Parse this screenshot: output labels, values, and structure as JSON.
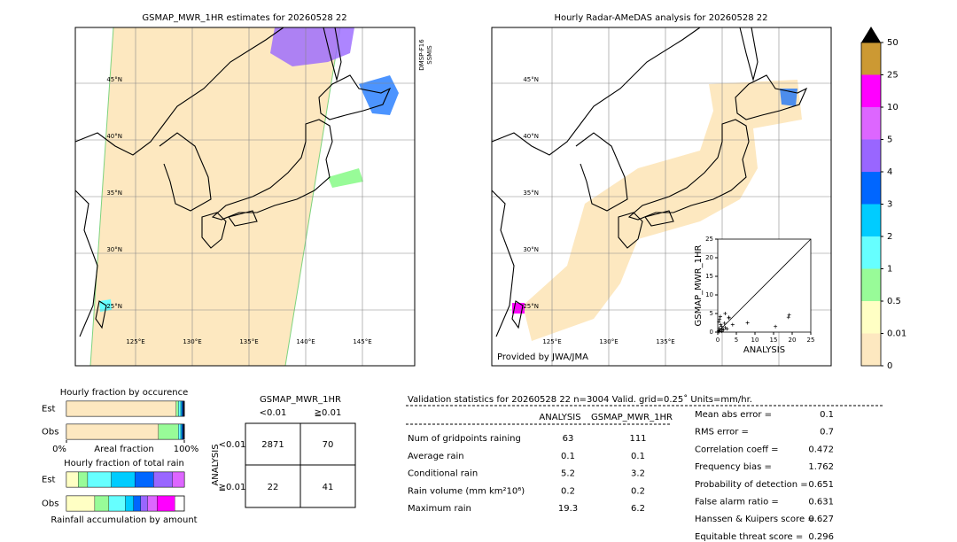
{
  "left_map": {
    "title": "GSMAP_MWR_1HR estimates for 20260528 22",
    "satellite": [
      "DMSP-F16",
      "SSMIS"
    ],
    "lat_labels": [
      "45°N",
      "40°N",
      "35°N",
      "30°N",
      "25°N"
    ],
    "lon_labels": [
      "125°E",
      "130°E",
      "135°E",
      "140°E",
      "145°E"
    ]
  },
  "right_map": {
    "title": "Hourly Radar-AMeDAS analysis for 20260528 22",
    "lat_labels": [
      "45°N",
      "40°N",
      "35°N",
      "30°N",
      "25°N"
    ],
    "lon_labels": [
      "125°E",
      "130°E",
      "135°E"
    ],
    "credit": "Provided by JWA/JMA"
  },
  "colorbar": {
    "levels": [
      0,
      0.01,
      0.5,
      1,
      2,
      3,
      4,
      5,
      10,
      25,
      50
    ],
    "colors": [
      "#fde8c0",
      "#ffffc4",
      "#98fb98",
      "#66ffff",
      "#00ccff",
      "#0066ff",
      "#9966ff",
      "#dd66ff",
      "#ff00ff",
      "#cc9933"
    ],
    "extend_color": "#000000"
  },
  "scatter": {
    "type": "scatter",
    "xlabel": "ANALYSIS",
    "ylabel": "GSMAP_MWR_1HR",
    "xlim": [
      0,
      25
    ],
    "ylim": [
      0,
      25
    ],
    "xticks": [
      0,
      5,
      10,
      15,
      20,
      25
    ],
    "yticks": [
      0,
      5,
      10,
      15,
      20,
      25
    ],
    "x": [
      0.2,
      0.4,
      0.6,
      0.8,
      1.0,
      1.2,
      0.3,
      0.5,
      1.5,
      2.0,
      0.7,
      1.8,
      2.5,
      3.0,
      4.0,
      8.0,
      15.5,
      19.0,
      19.2,
      2.0,
      3.0,
      0.4,
      1.1
    ],
    "y": [
      0.3,
      1.0,
      0.5,
      2.0,
      1.5,
      0.8,
      2.8,
      3.5,
      0.6,
      1.2,
      4.2,
      2.4,
      0.9,
      3.8,
      2.0,
      2.5,
      1.5,
      4.0,
      4.6,
      5.0,
      4.0,
      0.1,
      0.2
    ]
  },
  "occurrence": {
    "title": "Hourly fraction by occurence",
    "xlabel": "Areal fraction",
    "xlim": [
      0,
      100
    ],
    "xticks": [
      {
        "value": 0,
        "label": "0%"
      },
      {
        "value": 100,
        "label": "100%"
      }
    ],
    "colors": [
      "#fde8c0",
      "#98fb98",
      "#66ffff",
      "#00ccff",
      "#0066ff",
      "#000000"
    ],
    "rows": [
      {
        "name": "Est",
        "values": [
          93,
          2,
          2,
          1,
          1,
          1
        ]
      },
      {
        "name": "Obs",
        "values": [
          78,
          17,
          2,
          1,
          1,
          1
        ]
      }
    ]
  },
  "total_rain": {
    "title": "Hourly fraction of total rain",
    "xlabel": "Rainfall accumulation by amount",
    "xlim": [
      0,
      100
    ],
    "colors": [
      "#ffffc4",
      "#98fb98",
      "#66ffff",
      "#00ccff",
      "#0066ff",
      "#9966ff",
      "#dd66ff",
      "#ff00ff"
    ],
    "rows": [
      {
        "name": "Est",
        "values": [
          10,
          8,
          20,
          20,
          16,
          16,
          10
        ]
      },
      {
        "name": "Obs",
        "values": [
          24,
          12,
          14,
          7,
          6,
          6,
          8,
          15
        ]
      }
    ]
  },
  "contingency": {
    "title": "GSMAP_MWR_1HR",
    "col_labels": [
      "<0.01",
      "≧0.01"
    ],
    "row_axis": "ANALYSIS",
    "row_labels": [
      "<0.01",
      "≧0.01"
    ],
    "cells": [
      [
        2871,
        70
      ],
      [
        22,
        41
      ]
    ]
  },
  "stats": {
    "header": "Validation statistics for 20260528 22  n=3004 Valid. grid=0.25˚ Units=mm/hr.",
    "columns": [
      "ANALYSIS",
      "GSMAP_MWR_1HR"
    ],
    "rows": [
      {
        "label": "Num of gridpoints raining",
        "values": [
          63,
          111
        ]
      },
      {
        "label": "Average rain",
        "values": [
          0.1,
          0.1
        ]
      },
      {
        "label": "Conditional rain",
        "values": [
          5.2,
          3.2
        ]
      },
      {
        "label": "Rain volume (mm km²10⁶)",
        "values": [
          0.2,
          0.2
        ]
      },
      {
        "label": "Maximum rain",
        "values": [
          19.3,
          6.2
        ]
      }
    ],
    "scores": [
      {
        "label": "Mean abs error =",
        "value": 0.1
      },
      {
        "label": "RMS error =",
        "value": 0.7
      },
      {
        "label": "Correlation coeff =",
        "value": 0.472
      },
      {
        "label": "Frequency bias =",
        "value": 1.762
      },
      {
        "label": "Probability of detection =",
        "value": 0.651
      },
      {
        "label": "False alarm ratio =",
        "value": 0.631
      },
      {
        "label": "Hanssen & Kuipers score =",
        "value": 0.627
      },
      {
        "label": "Equitable threat score =",
        "value": 0.296
      }
    ]
  }
}
